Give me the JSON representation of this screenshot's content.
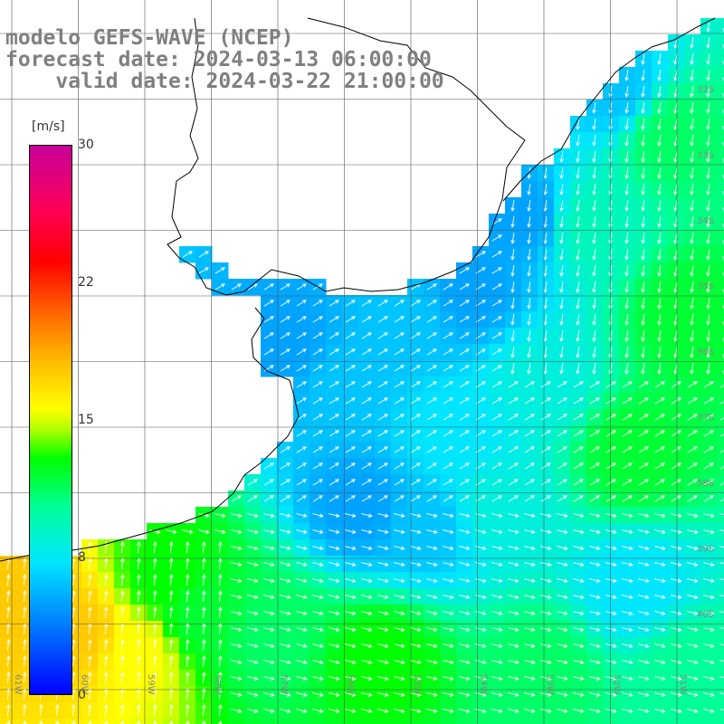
{
  "title": {
    "line1": "modelo GEFS-WAVE (NCEP)",
    "line2": "forecast date: 2024-03-13 06:00:00",
    "line3": "    valid date: 2024-03-22 21:00:00"
  },
  "colorbar": {
    "unit": "[m/s]",
    "min": 0,
    "max": 30,
    "ticks": [
      "30",
      "22",
      "15",
      "8",
      "0"
    ],
    "tick_values": [
      30,
      22,
      15,
      8,
      0
    ],
    "colors": [
      "#0000ff",
      "#0080ff",
      "#00e6ff",
      "#00ff99",
      "#00ff00",
      "#ffff00",
      "#ff6000",
      "#ff0000",
      "#c8009a"
    ]
  },
  "longitude_labels": [
    "61W",
    "60W",
    "59W",
    "58W",
    "57W",
    "56W",
    "55W",
    "54W",
    "53W",
    "52W",
    "51W"
  ],
  "latitude_labels": [
    "32S",
    "33S",
    "34S",
    "35S",
    "36S",
    "37S",
    "38S",
    "39S",
    "40S"
  ],
  "chart_data": {
    "type": "heatmap",
    "variable": "wind speed",
    "unit": "m/s",
    "x_range": [
      -61.2,
      -50.8
    ],
    "y_range": [
      -40.7,
      -30.3
    ],
    "color_range": [
      0,
      30
    ],
    "regions": [
      {
        "area": "northeast open ocean",
        "speed": 11
      },
      {
        "area": "east-central (around 37S, 53W)",
        "speed": 12
      },
      {
        "area": "Rio de la Plata estuary",
        "speed": 6
      },
      {
        "area": "coastal shelf south of Rio de la Plata",
        "speed": 5
      },
      {
        "area": "southwest corner near 40S 61W",
        "speed": 18
      },
      {
        "area": "southern band near 39.5S",
        "speed": 12
      }
    ]
  }
}
